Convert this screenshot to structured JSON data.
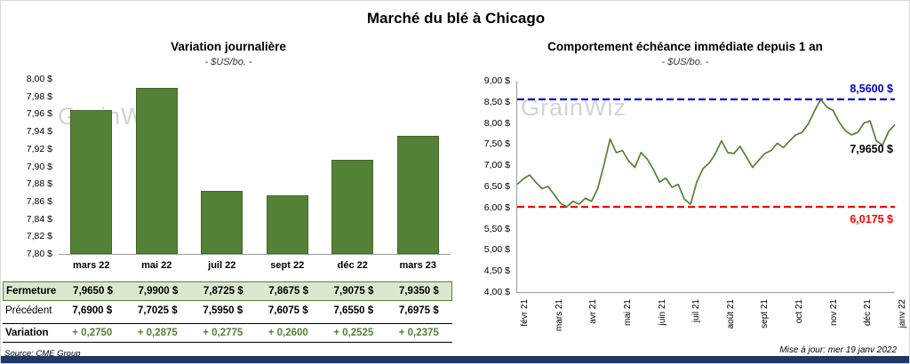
{
  "page": {
    "title": "Marché du blé à Chicago",
    "source": "Source: CME Group",
    "updated": "Mise à jour: mer 19 janv 2022",
    "watermark": "GrainWiz"
  },
  "colors": {
    "bar": "#538135",
    "bar_border": "#44682b",
    "line": "#538135",
    "high": "#0000cc",
    "low": "#ff0000",
    "variation_text": "#538135",
    "table_bg": "#dbe8cf",
    "table_border": "#538135",
    "bottom_bar": "#203864"
  },
  "chart_data": [
    {
      "type": "bar",
      "title": "Variation journalière",
      "subtitle": "- $US/bo. -",
      "categories": [
        "mars 22",
        "mai 22",
        "juil 22",
        "sept 22",
        "déc 22",
        "mars 23"
      ],
      "values": [
        7.965,
        7.99,
        7.8725,
        7.8675,
        7.9075,
        7.935
      ],
      "ylim": [
        7.8,
        8.0
      ],
      "ytick_step": 0.02,
      "ytick_labels": [
        "8,00 $",
        "7,98 $",
        "7,96 $",
        "7,94 $",
        "7,92 $",
        "7,90 $",
        "7,88 $",
        "7,86 $",
        "7,84 $",
        "7,82 $",
        "7,80 $"
      ],
      "grid": false,
      "legend": false
    },
    {
      "type": "line",
      "title": "Comportement échéance immédiate depuis 1 an",
      "subtitle": "- $US/bo. -",
      "x_labels": [
        "févr 21",
        "mars 21",
        "avr 21",
        "mai 21",
        "juin 21",
        "juil 21",
        "août 21",
        "sept 21",
        "oct 21",
        "nov 21",
        "déc 21",
        "janv 22"
      ],
      "values": [
        6.55,
        6.68,
        6.77,
        6.6,
        6.45,
        6.5,
        6.3,
        6.1,
        6.0175,
        6.15,
        6.08,
        6.22,
        6.15,
        6.45,
        7.0,
        7.62,
        7.3,
        7.35,
        7.1,
        6.95,
        7.3,
        7.15,
        6.9,
        6.6,
        6.7,
        6.48,
        6.55,
        6.2,
        6.08,
        6.6,
        6.92,
        7.05,
        7.28,
        7.58,
        7.3,
        7.28,
        7.45,
        7.2,
        6.95,
        7.12,
        7.28,
        7.35,
        7.52,
        7.42,
        7.58,
        7.72,
        7.78,
        7.98,
        8.28,
        8.56,
        8.38,
        8.3,
        8.02,
        7.82,
        7.72,
        7.78,
        8.0,
        8.05,
        7.58,
        7.48,
        7.8,
        7.965
      ],
      "ylim": [
        4.0,
        9.0
      ],
      "ytick_step": 0.5,
      "ytick_labels": [
        "9,00 $",
        "8,50 $",
        "8,00 $",
        "7,50 $",
        "7,00 $",
        "6,50 $",
        "6,00 $",
        "5,50 $",
        "5,00 $",
        "4,50 $",
        "4,00 $"
      ],
      "high_value": 8.56,
      "high_label": "8,5600 $",
      "low_value": 6.0175,
      "low_label": "6,0175 $",
      "last_value": 7.965,
      "last_label": "7,9650 $",
      "grid": false,
      "legend": false
    }
  ],
  "table": {
    "rows": [
      {
        "label": "Fermeture",
        "values": [
          "7,9650  $",
          "7,9900  $",
          "7,8725  $",
          "7,8675  $",
          "7,9075  $",
          "7,9350  $"
        ]
      },
      {
        "label": "Précédent",
        "values": [
          "7,6900  $",
          "7,7025  $",
          "7,5950  $",
          "7,6075  $",
          "7,6550  $",
          "7,6975  $"
        ]
      },
      {
        "label": "Variation",
        "values": [
          "+ 0,2750",
          "+ 0,2875",
          "+ 0,2775",
          "+ 0,2600",
          "+ 0,2525",
          "+ 0,2375"
        ]
      }
    ]
  }
}
